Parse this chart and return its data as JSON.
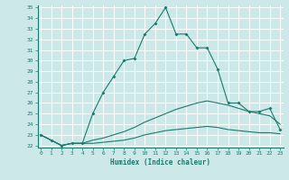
{
  "xlabel": "Humidex (Indice chaleur)",
  "bg_color": "#cce8e8",
  "grid_color": "#ffffff",
  "line_color": "#1a7a6e",
  "xmin": 0,
  "xmax": 23,
  "ymin": 22,
  "ymax": 35,
  "x_hours": [
    0,
    1,
    2,
    3,
    4,
    5,
    6,
    7,
    8,
    9,
    10,
    11,
    12,
    13,
    14,
    15,
    16,
    17,
    18,
    19,
    20,
    21,
    22,
    23
  ],
  "y_max": [
    23.0,
    22.5,
    22.0,
    22.2,
    22.2,
    25.0,
    27.0,
    28.5,
    30.0,
    30.2,
    32.5,
    33.5,
    35.0,
    32.5,
    32.5,
    31.2,
    31.2,
    29.2,
    26.0,
    26.0,
    25.2,
    25.2,
    25.5,
    23.5
  ],
  "y_mean": [
    23.0,
    22.5,
    22.0,
    22.2,
    22.2,
    22.5,
    22.7,
    23.0,
    23.3,
    23.7,
    24.2,
    24.6,
    25.0,
    25.4,
    25.7,
    26.0,
    26.2,
    26.0,
    25.8,
    25.5,
    25.2,
    25.0,
    24.8,
    24.0
  ],
  "y_min": [
    23.0,
    22.5,
    22.0,
    22.2,
    22.2,
    22.2,
    22.3,
    22.4,
    22.5,
    22.7,
    23.0,
    23.2,
    23.4,
    23.5,
    23.6,
    23.7,
    23.8,
    23.7,
    23.5,
    23.4,
    23.3,
    23.2,
    23.2,
    23.1
  ]
}
